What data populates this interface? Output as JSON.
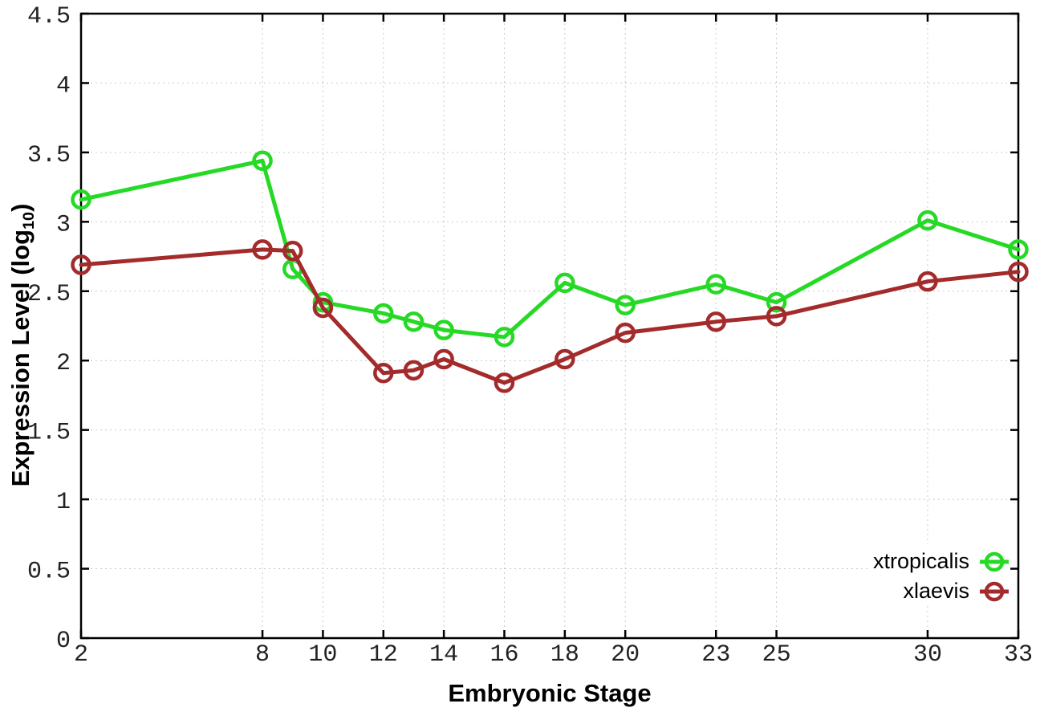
{
  "chart_data": {
    "type": "line",
    "title": "",
    "xlabel": "Embryonic Stage",
    "ylabel": "Expression Level (log10)",
    "ylabel_parts": {
      "pre": "Expression Level (log",
      "sub": "10",
      "post": ")"
    },
    "xlim": [
      2,
      33
    ],
    "ylim": [
      0,
      4.5
    ],
    "grid": true,
    "legend_position": "bottom-right",
    "x": [
      2,
      8,
      9,
      10,
      12,
      13,
      14,
      16,
      18,
      20,
      23,
      25,
      30,
      33
    ],
    "xticks": [
      2,
      8,
      10,
      12,
      14,
      16,
      18,
      20,
      23,
      25,
      30,
      33
    ],
    "yticks": [
      0,
      0.5,
      1,
      1.5,
      2,
      2.5,
      3,
      3.5,
      4,
      4.5
    ],
    "series": [
      {
        "name": "xtropicalis",
        "color": "#25d925",
        "values": [
          3.16,
          3.44,
          2.66,
          2.42,
          2.34,
          2.28,
          2.22,
          2.17,
          2.56,
          2.4,
          2.55,
          2.42,
          3.01,
          2.8
        ]
      },
      {
        "name": "xlaevis",
        "color": "#a32b2b",
        "values": [
          2.69,
          2.8,
          2.79,
          2.38,
          1.91,
          1.93,
          2.01,
          1.84,
          2.01,
          2.2,
          2.28,
          2.32,
          2.57,
          2.64
        ]
      }
    ],
    "axis_color": "#000000",
    "grid_color": "#c9c9c9",
    "tick_label_color": "#222222"
  }
}
